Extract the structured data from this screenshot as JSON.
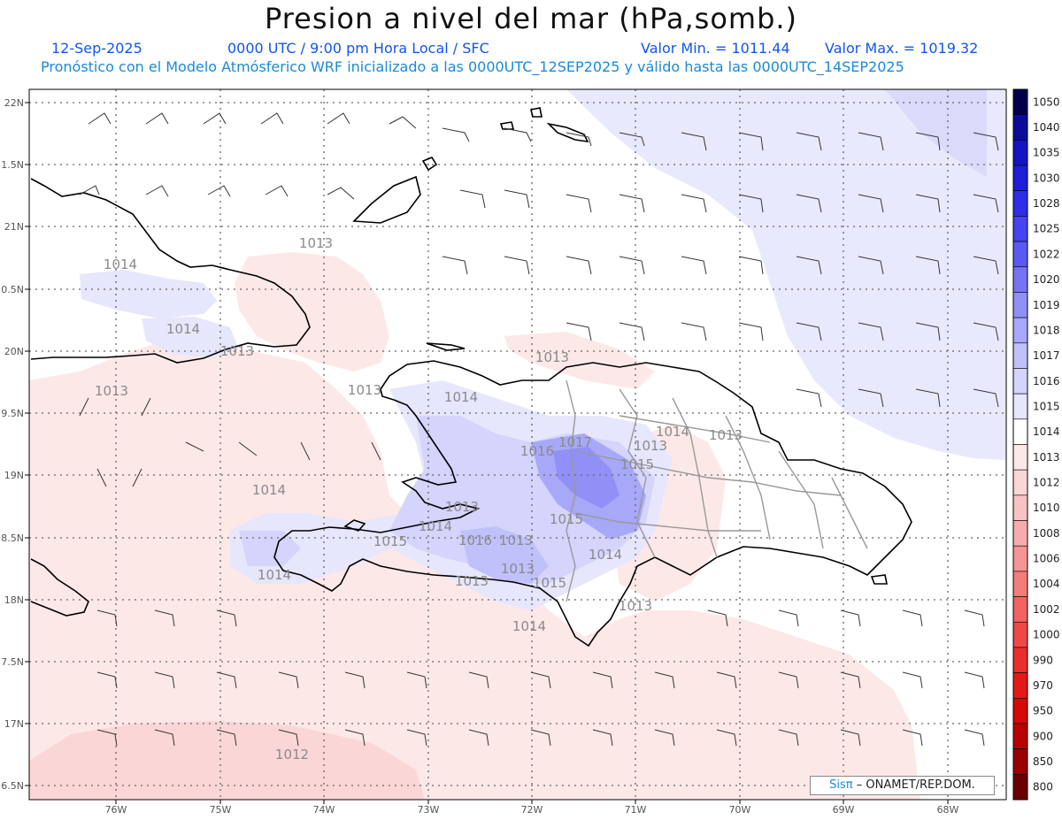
{
  "header": {
    "title": "Presion a nivel del mar (hPa,somb.)",
    "date": "12-Sep-2025",
    "time": "0000 UTC / 9:00 pm Hora Local / SFC",
    "min_label": "Valor Min. = 1011.44",
    "max_label": "Valor Max. = 1019.32",
    "forecast": "Pronóstico con el Modelo Atmósferico WRF inicializado a las 0000UTC_12SEP2025 y válido hasta las  0000UTC_14SEP2025"
  },
  "axes": {
    "lat_labels": [
      "22N",
      "1.5N",
      "21N",
      "0.5N",
      "20N",
      "9.5N",
      "19N",
      "8.5N",
      "18N",
      "7.5N",
      "17N",
      "6.5N"
    ],
    "lon_labels": [
      "76W",
      "75W",
      "74W",
      "73W",
      "72W",
      "71W",
      "70W",
      "69W",
      "68W"
    ]
  },
  "isobar_labels": [
    "1013",
    "1014",
    "1014",
    "1013",
    "1013",
    "1013",
    "1014",
    "1013",
    "1014",
    "1013",
    "1016",
    "1017",
    "1015",
    "1013",
    "1014",
    "1013",
    "1015",
    "1014",
    "1013",
    "1015",
    "1016",
    "1013",
    "1014",
    "1014",
    "1013",
    "1015",
    "1013",
    "1014",
    "1012"
  ],
  "colorbar": {
    "levels": [
      "1050",
      "1040",
      "1035",
      "1030",
      "1028",
      "1025",
      "1022",
      "1020",
      "1019",
      "1018",
      "1017",
      "1016",
      "1015",
      "1014",
      "1013",
      "1012",
      "1010",
      "1008",
      "1006",
      "1004",
      "1002",
      "1000",
      "990",
      "970",
      "950",
      "900",
      "850",
      "800"
    ],
    "colors": [
      "#00004a",
      "#0c0c9a",
      "#1414c4",
      "#1e1ed8",
      "#2e2ee8",
      "#4444f0",
      "#5a5af2",
      "#7474f4",
      "#9090f6",
      "#a8a8f8",
      "#c0c0fa",
      "#d4d4fc",
      "#e6e6fd",
      "#ffffff",
      "#fde8e8",
      "#fbd6d6",
      "#f9c2c2",
      "#f7acac",
      "#f59494",
      "#f37c7c",
      "#f16262",
      "#ee4848",
      "#ea2e2e",
      "#e41818",
      "#d40808",
      "#bb0000",
      "#9a0000",
      "#6a0000"
    ]
  },
  "credit": {
    "logo": "Sisπ",
    "text": "– ONAMET/REP.DOM."
  }
}
